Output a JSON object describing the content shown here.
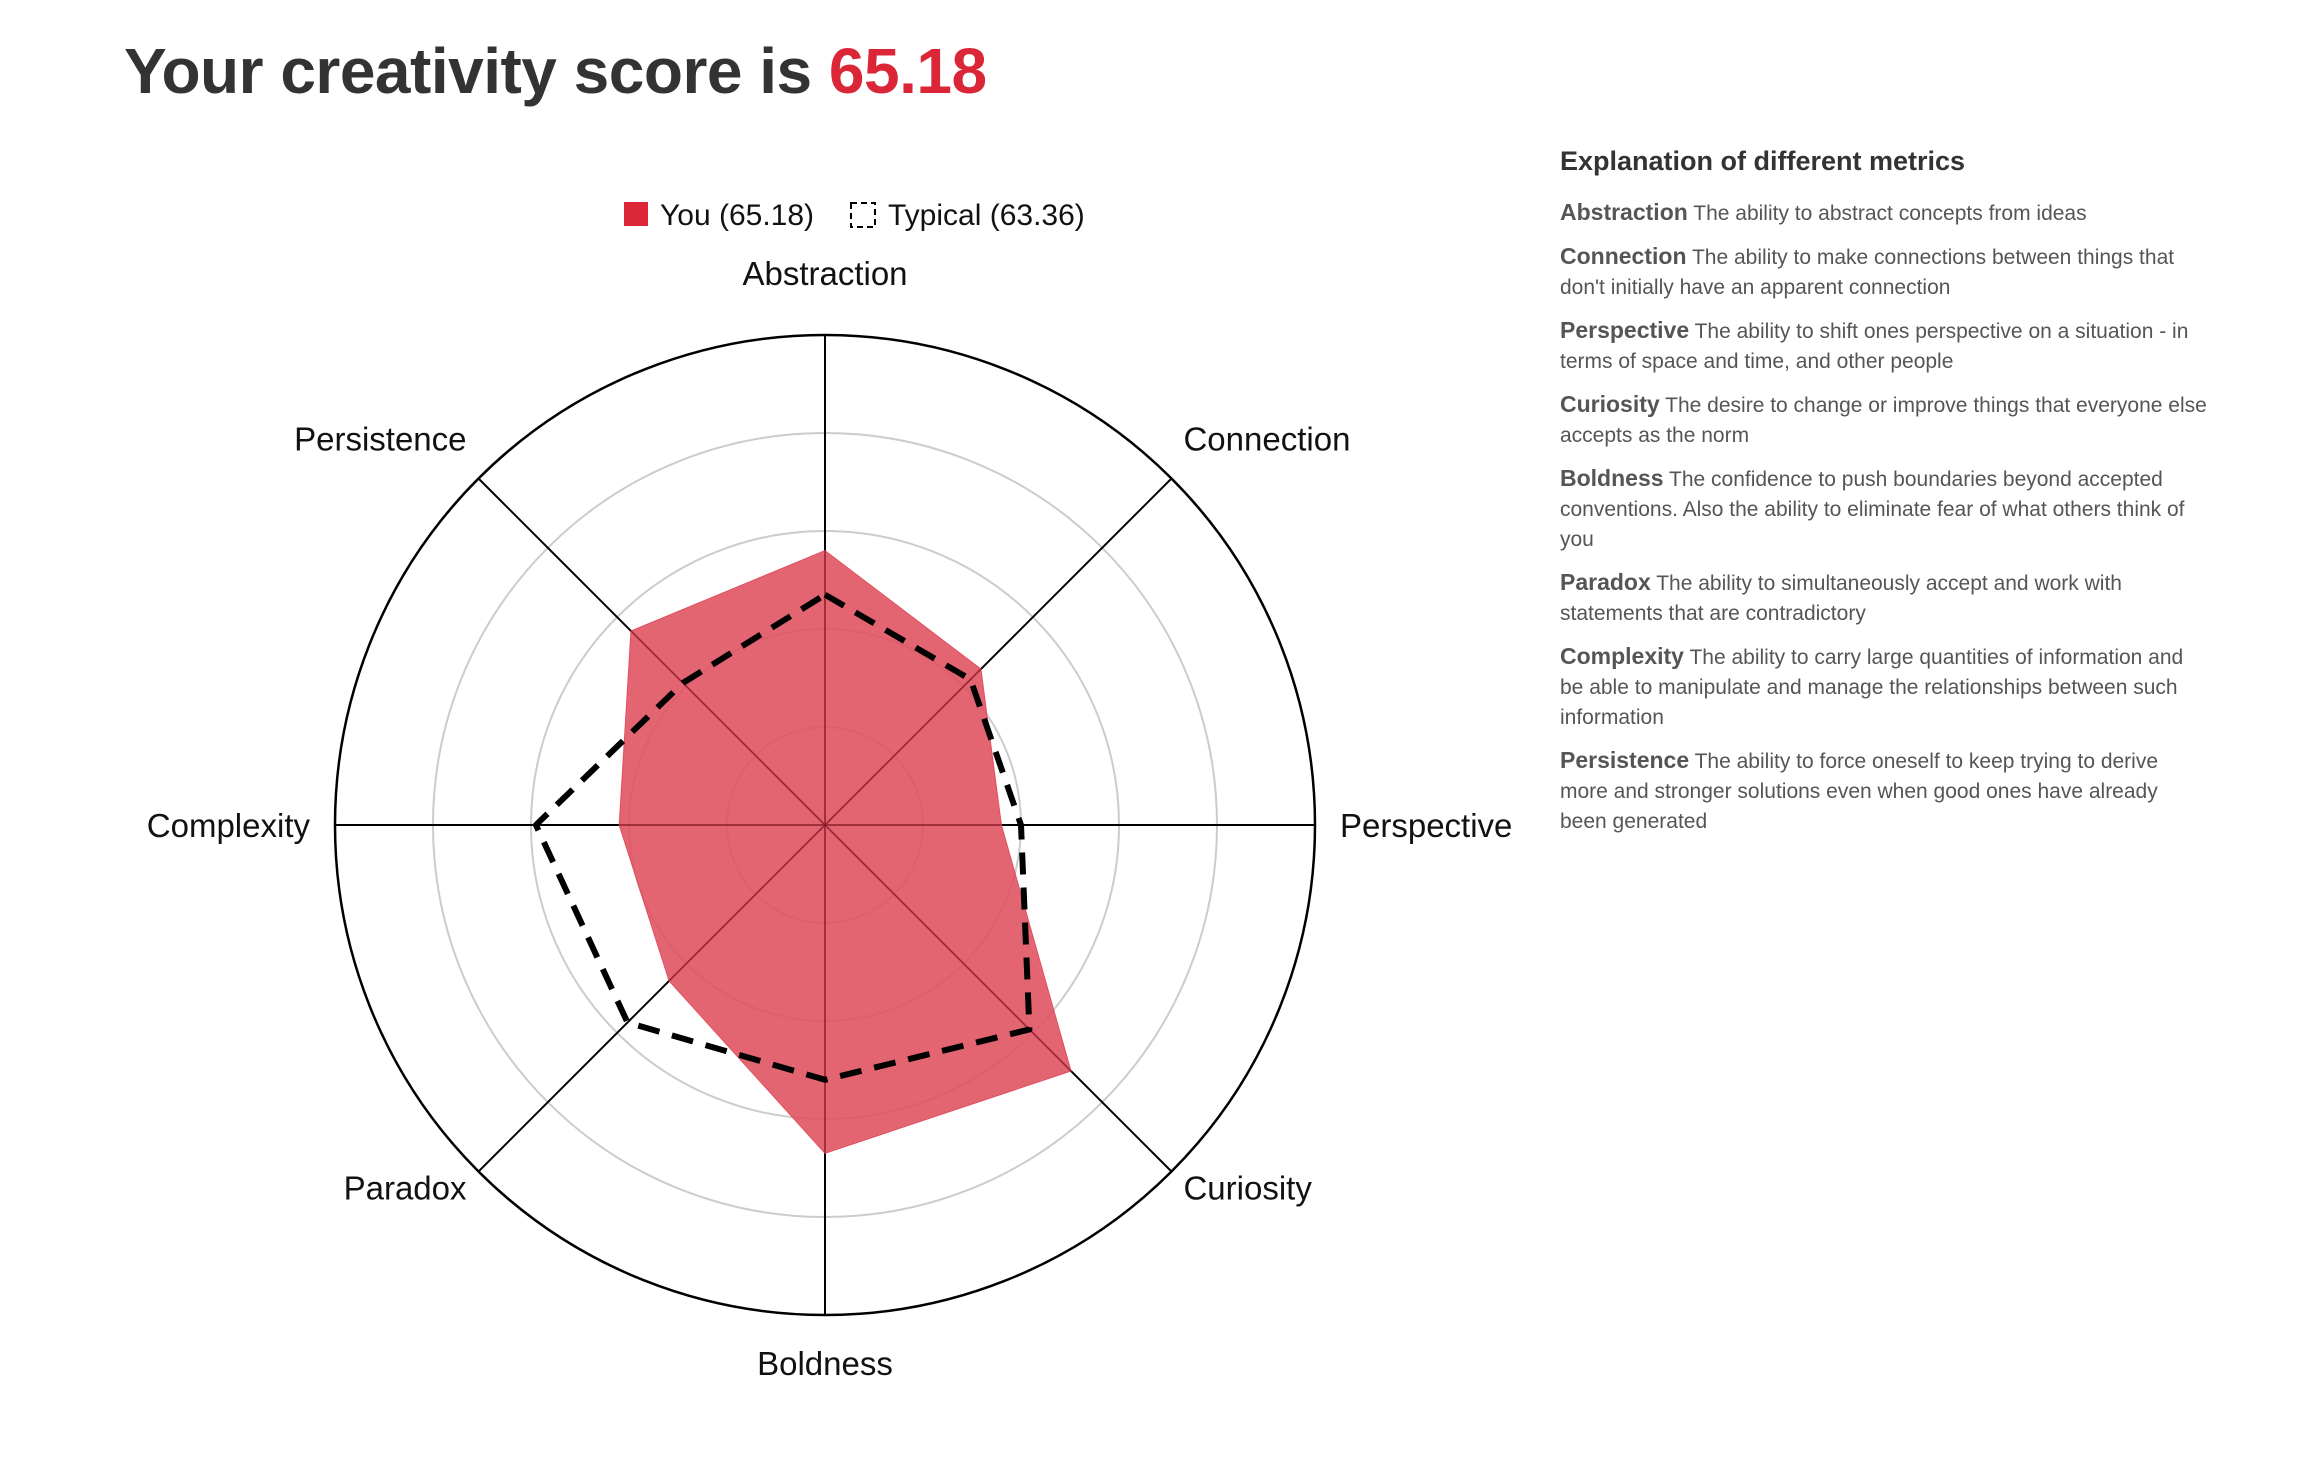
{
  "header": {
    "title_prefix": "Your creativity score is ",
    "score": "65.18"
  },
  "colors": {
    "accent": "#da2637",
    "you_fill": "#e0505f",
    "typical_stroke": "#000000",
    "grid_circle": "#cccccc",
    "axis_line": "#000000"
  },
  "chart_data": {
    "type": "radar",
    "axes": [
      "Abstraction",
      "Connection",
      "Perspective",
      "Curiosity",
      "Boldness",
      "Paradox",
      "Complexity",
      "Persistence"
    ],
    "range": [
      0,
      100
    ],
    "grid_rings": 5,
    "legend_position": "top-center",
    "series": [
      {
        "name": "You (65.18)",
        "style": "filled",
        "values": [
          56,
          45,
          36,
          71,
          67,
          45,
          42,
          56
        ]
      },
      {
        "name": "Typical (63.36)",
        "style": "dashed",
        "values": [
          47,
          42,
          40,
          59,
          52,
          57,
          59,
          41
        ]
      }
    ]
  },
  "explanation": {
    "heading": "Explanation of different metrics",
    "metrics": [
      {
        "name": "Abstraction",
        "text": "The ability to abstract concepts from ideas"
      },
      {
        "name": "Connection",
        "text": "The ability to make connections between things that don't initially have an apparent connection"
      },
      {
        "name": "Perspective",
        "text": "The ability to shift ones perspective on a situation - in terms of space and time, and other people"
      },
      {
        "name": "Curiosity",
        "text": "The desire to change or improve things that everyone else accepts as the norm"
      },
      {
        "name": "Boldness",
        "text": "The confidence to push boundaries beyond accepted conventions. Also the ability to eliminate fear of what others think of you"
      },
      {
        "name": "Paradox",
        "text": "The ability to simultaneously accept and work with statements that are contradictory"
      },
      {
        "name": "Complexity",
        "text": "The ability to carry large quantities of information and be able to manipulate and manage the relationships between such information"
      },
      {
        "name": "Persistence",
        "text": "The ability to force oneself to keep trying to derive more and stronger solutions even when good ones have already been generated"
      }
    ]
  }
}
